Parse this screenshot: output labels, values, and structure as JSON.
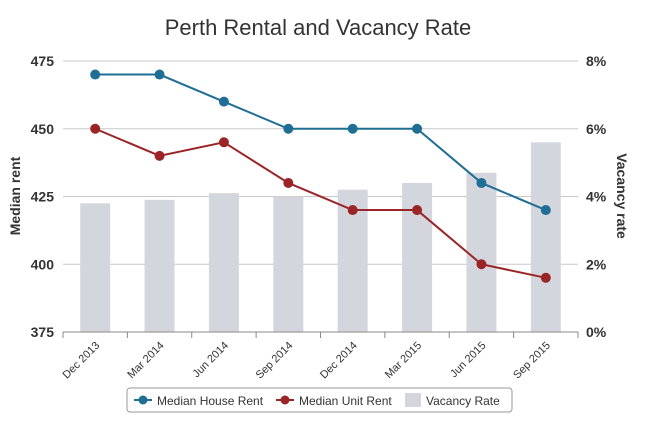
{
  "chart_data": {
    "type": "bar+line",
    "title": "Perth Rental and Vacancy Rate",
    "xlabel": "",
    "ylabel": "Median rent",
    "ylabel_right": "Vacancy rate",
    "categories": [
      "Dec 2013",
      "Mar 2014",
      "Jun 2014",
      "Sep 2014",
      "Dec 2014",
      "Mar 2015",
      "Jun 2015",
      "Sep 2015"
    ],
    "ylim": [
      375,
      475
    ],
    "yticks": [
      "375",
      "400",
      "425",
      "450",
      "475"
    ],
    "yticks_values": [
      375,
      400,
      425,
      450,
      475
    ],
    "ylim_right": [
      0,
      8
    ],
    "yticks_right": [
      "0%",
      "2%",
      "4%",
      "6%",
      "8%"
    ],
    "yticks_right_values": [
      0,
      2,
      4,
      6,
      8
    ],
    "grid": true,
    "legend_position": "bottom-center",
    "series": [
      {
        "name": "Median House Rent",
        "type": "line",
        "axis": "left",
        "color": "#1f6e94",
        "values": [
          470,
          470,
          460,
          450,
          450,
          450,
          430,
          420
        ]
      },
      {
        "name": "Median Unit Rent",
        "type": "line",
        "axis": "left",
        "color": "#9b2427",
        "values": [
          450,
          440,
          445,
          430,
          420,
          420,
          400,
          395
        ]
      },
      {
        "name": "Vacancy Rate",
        "type": "bar",
        "axis": "right",
        "color": "#d3d7dd",
        "values": [
          3.8,
          3.9,
          4.1,
          4.0,
          4.2,
          4.4,
          4.7,
          5.6
        ]
      }
    ]
  }
}
